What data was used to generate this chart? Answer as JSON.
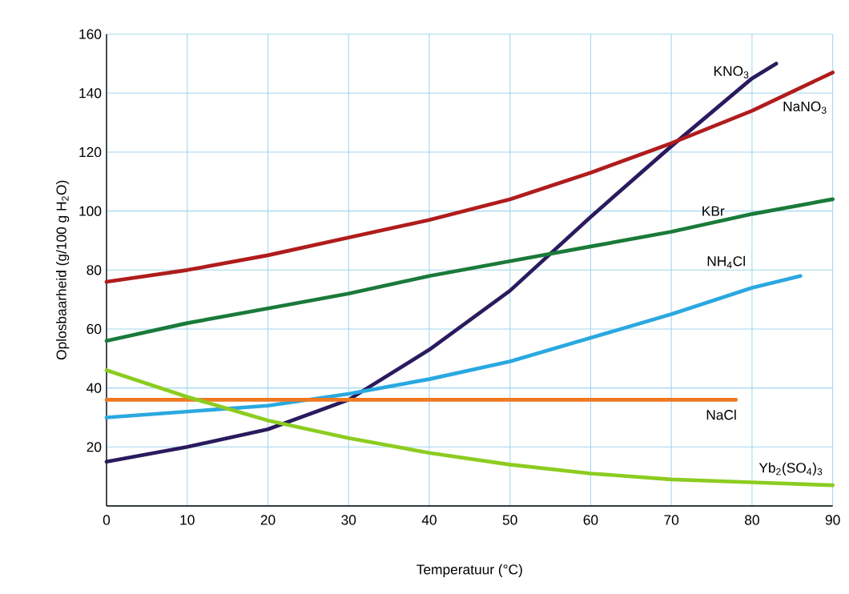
{
  "chart_data": {
    "type": "line",
    "xlabel": "Temperatuur (°C)",
    "ylabel": "Oplosbaarheid (g/100 g H$_{2}$O)",
    "xlim": [
      0,
      90
    ],
    "ylim": [
      0,
      160
    ],
    "xticks": [
      0,
      10,
      20,
      30,
      40,
      50,
      60,
      70,
      80,
      90
    ],
    "yticks": [
      {
        "value": 0,
        "label": null
      },
      20,
      40,
      60,
      80,
      100,
      120,
      140,
      160
    ],
    "grid": true,
    "marker": "none",
    "line_style": "solid",
    "legend": false,
    "series": [
      {
        "name": "KNO$_{3}$",
        "color": "#2a1a5e",
        "x": [
          0,
          10,
          20,
          30,
          40,
          50,
          60,
          70,
          80,
          83
        ],
        "values": [
          15,
          20,
          26,
          36,
          53,
          73,
          98,
          122,
          145,
          150
        ]
      },
      {
        "name": "NaNO$_{3}$",
        "color": "#b01c1c",
        "x": [
          0,
          10,
          20,
          30,
          40,
          50,
          60,
          70,
          80,
          90
        ],
        "values": [
          76,
          80,
          85,
          91,
          97,
          104,
          113,
          123,
          134,
          147
        ]
      },
      {
        "name": "KBr",
        "color": "#1a7a3a",
        "x": [
          0,
          10,
          20,
          30,
          40,
          50,
          60,
          70,
          80,
          90
        ],
        "values": [
          56,
          62,
          67,
          72,
          78,
          83,
          88,
          93,
          99,
          104
        ]
      },
      {
        "name": "NH$_{4}$Cl",
        "color": "#2aa8e0",
        "x": [
          0,
          10,
          20,
          30,
          40,
          50,
          60,
          70,
          80,
          86
        ],
        "values": [
          30,
          32,
          34,
          38,
          43,
          49,
          57,
          65,
          74,
          78
        ]
      },
      {
        "name": "NaCl",
        "color": "#f07820",
        "x": [
          0,
          78
        ],
        "values": [
          36,
          36
        ]
      },
      {
        "name": "Yb$_{2}$(SO$_{4}$)$_{3}$",
        "color": "#8ccc20",
        "x": [
          0,
          10,
          20,
          30,
          40,
          50,
          60,
          70,
          80,
          90
        ],
        "values": [
          46,
          37,
          29,
          23,
          18,
          14,
          11,
          9,
          8,
          7
        ]
      }
    ]
  }
}
